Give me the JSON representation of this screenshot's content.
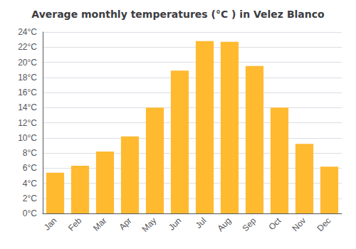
{
  "chart_data": {
    "type": "bar",
    "title": "Average monthly temperatures (°C ) in Velez Blanco",
    "categories": [
      "Jan",
      "Feb",
      "Mar",
      "Apr",
      "May",
      "Jun",
      "Jul",
      "Aug",
      "Sep",
      "Oct",
      "Nov",
      "Dec"
    ],
    "values": [
      5.4,
      6.3,
      8.2,
      10.2,
      14.0,
      18.9,
      22.8,
      22.7,
      19.5,
      14.0,
      9.2,
      6.2
    ],
    "color": "#FFBA30",
    "ylim": [
      0,
      24
    ],
    "yticks": [
      {
        "value": 0,
        "label": "0°C"
      },
      {
        "value": 2,
        "label": "2°C"
      },
      {
        "value": 4,
        "label": "4°C"
      },
      {
        "value": 6,
        "label": "6°C"
      },
      {
        "value": 8,
        "label": "8°C"
      },
      {
        "value": 10,
        "label": "10°C"
      },
      {
        "value": 12,
        "label": "12°C"
      },
      {
        "value": 14,
        "label": "14°C"
      },
      {
        "value": 16,
        "label": "16°C"
      },
      {
        "value": 18,
        "label": "18°C"
      },
      {
        "value": 20,
        "label": "20°C"
      },
      {
        "value": 22,
        "label": "22°C"
      },
      {
        "value": 24,
        "label": "24°C"
      }
    ],
    "grid": true
  }
}
